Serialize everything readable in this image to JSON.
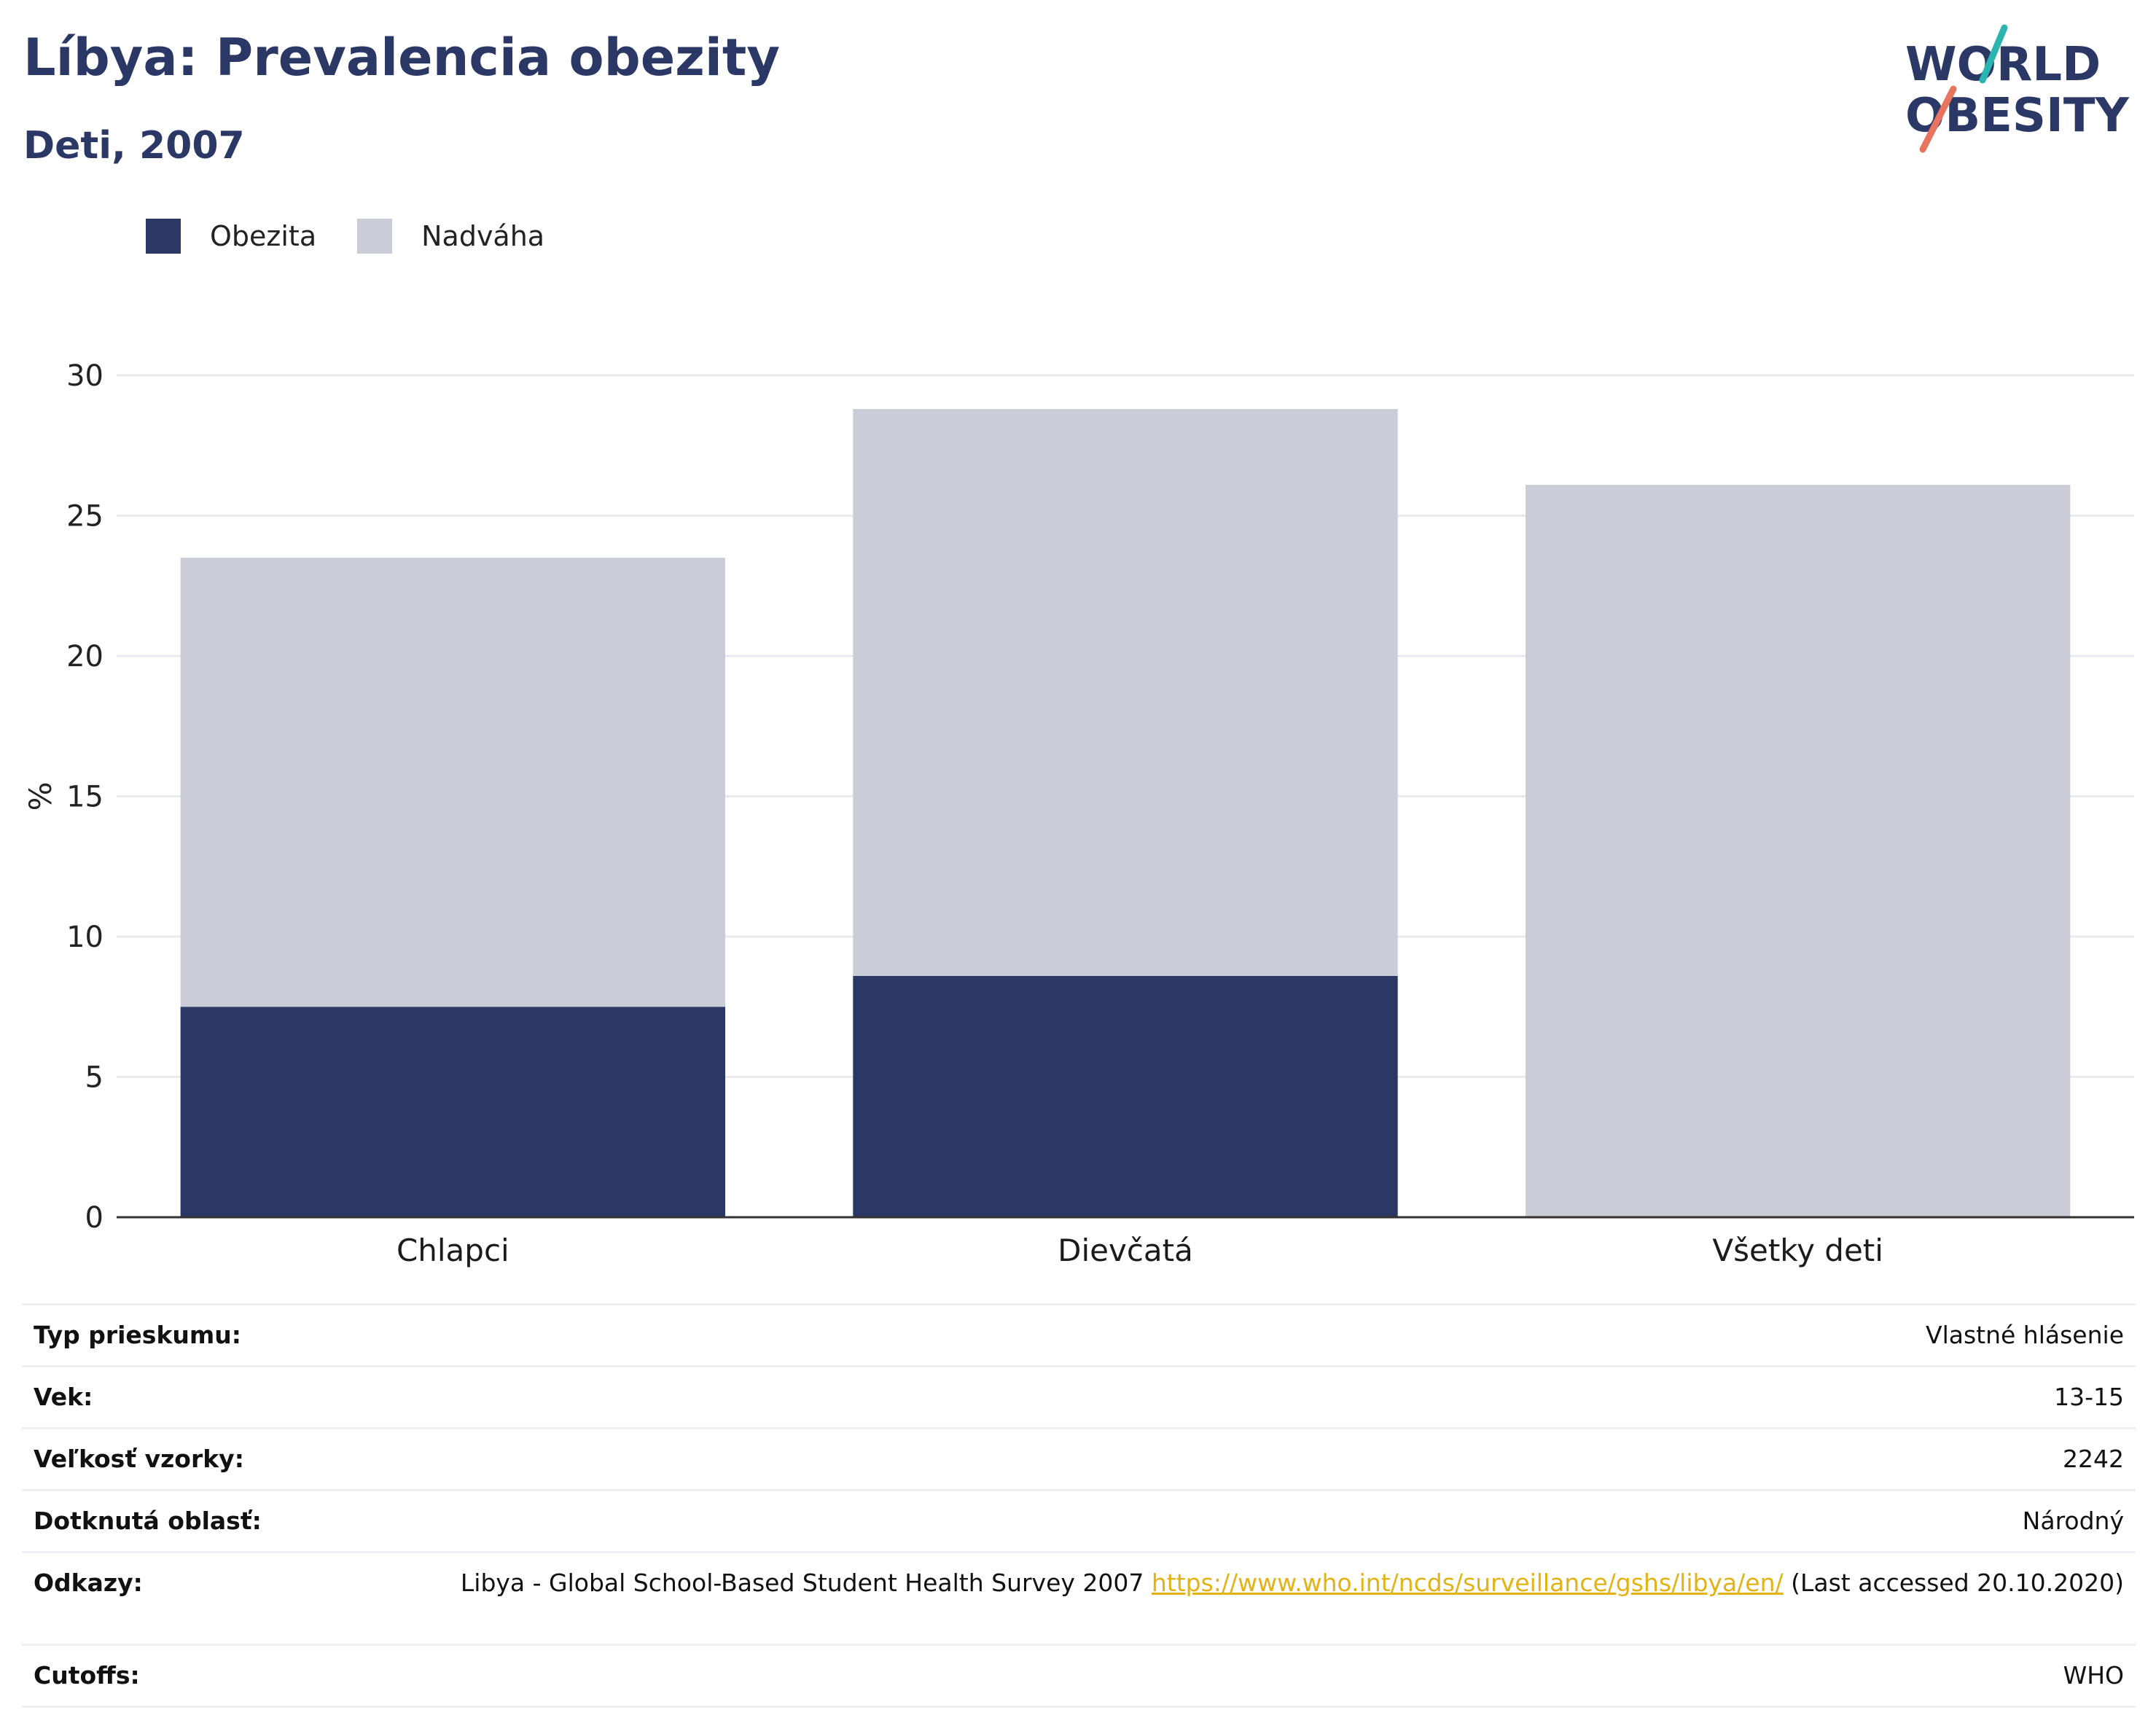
{
  "title": "Líbya: Prevalencia obezity",
  "subtitle": "Deti, 2007",
  "logo": {
    "line1": "WORLD",
    "line2": "OBESITY",
    "accent_colors": [
      "#2ab5b1",
      "#e8735f"
    ]
  },
  "legend": [
    {
      "label": "Obezita",
      "color": "#2b3866"
    },
    {
      "label": "Nadváha",
      "color": "#caccd7"
    }
  ],
  "chart_data": {
    "type": "bar",
    "stacked": true,
    "categories": [
      "Chlapci",
      "Dievčatá",
      "Všetky deti"
    ],
    "series": [
      {
        "name": "Obezita",
        "color": "#2b3866",
        "values": [
          7.5,
          8.6,
          null
        ]
      },
      {
        "name": "Nadváha",
        "color": "#caccd7",
        "values": [
          16.0,
          20.2,
          26.1
        ]
      }
    ],
    "ylabel": "%",
    "ylim": [
      0,
      30
    ],
    "yticks": [
      0,
      5,
      10,
      15,
      20,
      25,
      30
    ],
    "grid": true,
    "legend_position": "top-left"
  },
  "info_table": {
    "survey_type": {
      "label": "Typ prieskumu:",
      "value": "Vlastné hlásenie"
    },
    "age": {
      "label": "Vek:",
      "value": "13-15"
    },
    "sample": {
      "label": "Veľkosť vzorky:",
      "value": "2242"
    },
    "area": {
      "label": "Dotknutá oblasť:",
      "value": "Národný"
    },
    "refs": {
      "label": "Odkazy:",
      "text_before": "Libya - Global School-Based Student Health Survey 2007 ",
      "link": "https://www.who.int/ncds/surveillance/gshs/libya/en/",
      "text_after": " (Last accessed 20.10.2020)"
    },
    "cutoffs": {
      "label": "Cutoffs:",
      "value": "WHO"
    }
  }
}
